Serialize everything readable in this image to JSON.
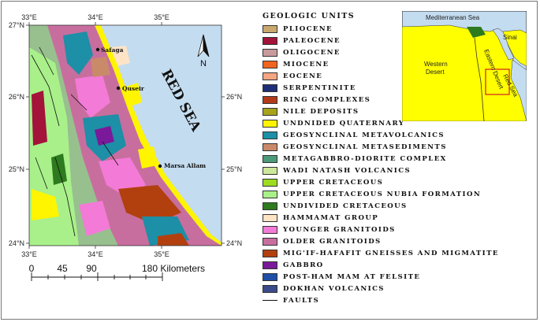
{
  "map": {
    "lon_labels_top": [
      "33°E",
      "34°E",
      "35°E"
    ],
    "lon_labels_bottom": [
      "33°E",
      "34°E",
      "35°E"
    ],
    "lat_labels_left": [
      "27°N",
      "26°N",
      "25°N",
      "24°N"
    ],
    "lat_labels_right": [
      "26°N",
      "25°N",
      "24°N"
    ],
    "sea_label": "RED SEA",
    "north_label": "N",
    "cities": [
      {
        "name": "Safaga"
      },
      {
        "name": "Quseir"
      },
      {
        "name": "Marsa Allam"
      }
    ],
    "scale_labels": [
      "0",
      "45",
      "90",
      "180 Kilometers"
    ],
    "colors": {
      "sea": "#c4dcf0",
      "land_base": "#97c08e"
    }
  },
  "legend": {
    "title": "GEOLOGIC UNITS",
    "items": [
      {
        "label": "PLIOCENE",
        "color": "#c8a86c"
      },
      {
        "label": "PALEOCENE",
        "color": "#a3133a"
      },
      {
        "label": "OLIGOCENE",
        "color": "#c89a9c"
      },
      {
        "label": "MIOCENE",
        "color": "#f36421"
      },
      {
        "label": "EOCENE",
        "color": "#f5a582"
      },
      {
        "label": "SERPENTINITE",
        "color": "#1e2f78"
      },
      {
        "label": "RING COMPLEXES",
        "color": "#b23a1a"
      },
      {
        "label": "NILE DEPOSITS",
        "color": "#a7a31a"
      },
      {
        "label": "UNDNIDED QUATERNARY",
        "color": "#fff500"
      },
      {
        "label": "GEOSYNCLINAL METAVOLCANICS",
        "color": "#1d8fa6"
      },
      {
        "label": "GEOSYNCLINAL METASEDIMENTS",
        "color": "#c98a6a"
      },
      {
        "label": "METAGABBRO-DIORITE COMPLEX",
        "color": "#4c9a7a"
      },
      {
        "label": "WADI NATASH VOLCANICS",
        "color": "#cde89a"
      },
      {
        "label": "UPPER CRETACEOUS",
        "color": "#9edc20"
      },
      {
        "label": "UPPER CRETACEOUS NUBIA FORMATION",
        "color": "#a9f08a"
      },
      {
        "label": "UNDIVIDED CRETACEOUS",
        "color": "#2e7a1e"
      },
      {
        "label": "HAMMAMAT GROUP",
        "color": "#fde4c6"
      },
      {
        "label": "YOUNGER GRANITOIDS",
        "color": "#f37ad6"
      },
      {
        "label": "OLDER GRANITOIDS",
        "color": "#c86e9e"
      },
      {
        "label": "MIG'IF-HAFAFIT GNEISSES AND MIGMATITE",
        "color": "#b2400e"
      },
      {
        "label": "GABBRO",
        "color": "#7a1a9a"
      },
      {
        "label": "POST-HAM MAM AT FELSITE",
        "color": "#1f4fa6"
      },
      {
        "label": "DOKHAN VOLCANICS",
        "color": "#3a4a8a"
      },
      {
        "label": "FAULTS",
        "color": "#111111",
        "line": true
      }
    ]
  },
  "inset": {
    "labels": {
      "mediterranean": "Mediterranean Sea",
      "western_desert": [
        "Western",
        "Desert"
      ],
      "sinai": "Sinai",
      "eastern_desert": "Eastern Desert",
      "red_sea": "Red Sea"
    },
    "colors": {
      "land": "#ffff00",
      "sea": "#c4dcf0",
      "delta": "#2e7a1e",
      "box": "#d21e1e"
    }
  }
}
